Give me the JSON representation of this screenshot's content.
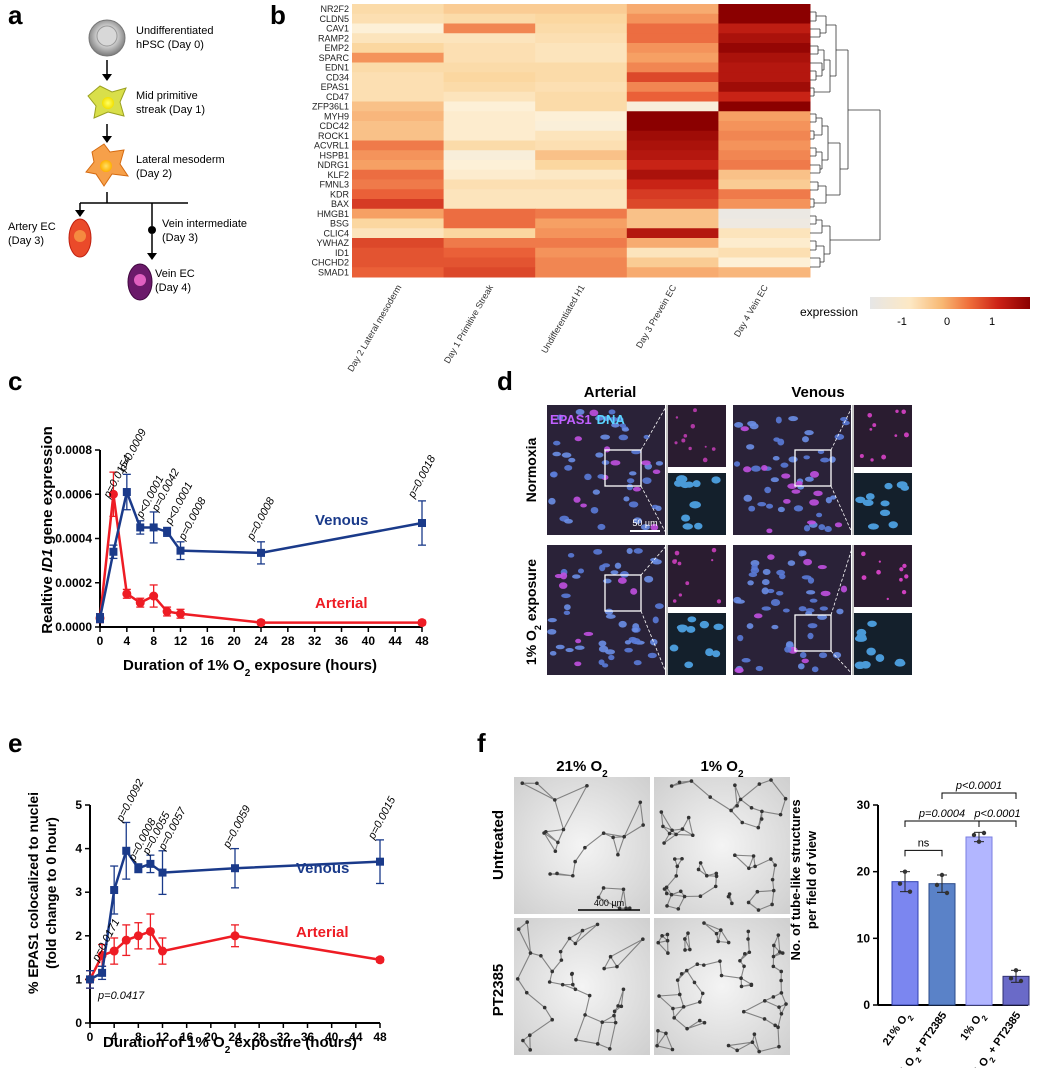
{
  "panels": {
    "a": "a",
    "b": "b",
    "c": "c",
    "d": "d",
    "e": "e",
    "f": "f"
  },
  "colors": {
    "venous": "#1a3a8a",
    "arterial": "#ee1c24",
    "heat_low": "#e6e6e6",
    "heat_mid": "#fbe3b8",
    "heat_high": "#8b0000"
  },
  "panel_a": {
    "stages": [
      {
        "line1": "Undifferentiated",
        "line2": "hPSC (Day 0)"
      },
      {
        "line1": "Mid primitive",
        "line2": "streak (Day 1)"
      },
      {
        "line1": "Lateral mesoderm",
        "line2": "(Day 2)"
      },
      {
        "line1": "Artery EC",
        "line2": "(Day 3)"
      },
      {
        "line1": "Vein intermediate",
        "line2": "(Day 3)"
      },
      {
        "line1": "Vein EC",
        "line2": "(Day 4)"
      }
    ]
  },
  "panel_b": {
    "genes": [
      "NR2F2",
      "CLDN5",
      "CAV1",
      "RAMP2",
      "EMP2",
      "SPARC",
      "EDN1",
      "CD34",
      "EPAS1",
      "CD47",
      "ZFP36L1",
      "MYH9",
      "CDC42",
      "ROCK1",
      "ACVRL1",
      "HSPB1",
      "NDRG1",
      "KLF2",
      "FMNL3",
      "KDR",
      "BAX",
      "HMGB1",
      "BSG",
      "CLIC4",
      "YWHAZ",
      "ID1",
      "CHCHD2",
      "SMAD1"
    ],
    "columns": [
      "Day 2 Lateral mesoderm",
      "Day 1 Primitive Streak",
      "Undifferentiated H1",
      "Day 3 Prevein EC",
      "Day 4 Vein EC"
    ],
    "values": [
      [
        -0.4,
        -0.2,
        -0.2,
        0.1,
        1.8
      ],
      [
        -0.5,
        -0.4,
        -0.3,
        0.3,
        1.8
      ],
      [
        -0.9,
        0.4,
        -0.4,
        0.6,
        1.3
      ],
      [
        -0.6,
        -0.6,
        -0.5,
        0.6,
        1.5
      ],
      [
        -0.3,
        -0.5,
        -0.6,
        0.3,
        1.7
      ],
      [
        0.3,
        -0.5,
        -0.6,
        0.2,
        1.5
      ],
      [
        -0.4,
        -0.4,
        -0.4,
        0.4,
        1.4
      ],
      [
        -0.5,
        -0.3,
        -0.4,
        0.9,
        1.4
      ],
      [
        -0.5,
        -0.4,
        -0.5,
        0.4,
        1.6
      ],
      [
        -0.5,
        -0.6,
        -0.4,
        0.7,
        1.2
      ],
      [
        -0.1,
        -0.9,
        -0.4,
        -1.1,
        1.8
      ],
      [
        0.0,
        -0.8,
        -0.9,
        1.8,
        0.2
      ],
      [
        -0.1,
        -0.8,
        -1.0,
        1.8,
        0.3
      ],
      [
        -0.1,
        -0.8,
        -0.6,
        1.6,
        0.4
      ],
      [
        0.5,
        -0.4,
        -0.5,
        1.5,
        0.3
      ],
      [
        0.3,
        -1.1,
        -0.1,
        1.4,
        0.4
      ],
      [
        0.2,
        -0.9,
        -0.3,
        1.2,
        0.5
      ],
      [
        0.6,
        -0.8,
        -0.7,
        1.5,
        -0.1
      ],
      [
        0.5,
        -0.5,
        -0.5,
        1.2,
        -0.2
      ],
      [
        0.7,
        -0.6,
        -0.6,
        1.0,
        0.5
      ],
      [
        1.0,
        -0.6,
        -0.6,
        0.9,
        0.3
      ],
      [
        0.2,
        0.6,
        0.5,
        -0.1,
        -1.6
      ],
      [
        -0.3,
        0.6,
        0.2,
        -0.1,
        -1.5
      ],
      [
        -0.6,
        -0.3,
        0.3,
        1.4,
        -0.6
      ],
      [
        0.9,
        0.5,
        0.5,
        0.1,
        -0.8
      ],
      [
        0.8,
        0.7,
        0.3,
        -0.6,
        -0.5
      ],
      [
        0.8,
        0.8,
        0.4,
        -0.2,
        -0.9
      ],
      [
        0.7,
        0.9,
        0.4,
        0.1,
        0.0
      ]
    ],
    "legend_title": "expression",
    "legend_ticks": [
      "-1",
      "0",
      "1"
    ]
  },
  "panel_c": {
    "ylabel_pre": "Realtive ",
    "ylabel_italic": "ID1",
    "ylabel_post": " gene expression",
    "xlabel_pre": "Duration of 1% O",
    "xlabel_sub": "2",
    "xlabel_post": " exposure (hours)",
    "xticks": [
      "0",
      "4",
      "8",
      "12",
      "16",
      "20",
      "24",
      "28",
      "32",
      "36",
      "40",
      "44",
      "48"
    ],
    "yticks": [
      "0.0000",
      "0.0002",
      "0.0004",
      "0.0006",
      "0.0008"
    ],
    "venous_label": "Venous",
    "arterial_label": "Arterial",
    "pvalues": [
      "p=0.0154",
      "p=0.0009",
      "p<0.0001",
      "p=0.0042",
      "p<0.0001",
      "p=0.0008",
      "p=0.0008",
      "p=0.0018"
    ]
  },
  "panel_d": {
    "col1": "Arterial",
    "col2": "Venous",
    "row1": "Normoxia",
    "row2_pre": "1% O",
    "row2_sub": "2",
    "row2_post": " exposure",
    "stain1": "EPAS1",
    "stain2": "DNA",
    "scale": "50 µm"
  },
  "panel_e": {
    "ylabel1": "% EPAS1 colocalized to nuclei",
    "ylabel2": "(fold change to 0 hour)",
    "xlabel_pre": "Duration of 1% O",
    "xlabel_sub": "2",
    "xlabel_post": " exposure (hours)",
    "xticks": [
      "0",
      "4",
      "8",
      "12",
      "16",
      "20",
      "24",
      "28",
      "32",
      "36",
      "40",
      "44",
      "48"
    ],
    "yticks": [
      "0",
      "1",
      "2",
      "3",
      "4",
      "5"
    ],
    "venous_label": "Venous",
    "arterial_label": "Arterial",
    "pvalues": [
      "p=0.0171",
      "p=0.0092",
      "p=0.0008",
      "p=0.0055",
      "p=0.0057",
      "p=0.0059",
      "p=0.0015"
    ],
    "pvalue_low": "p=0.0417"
  },
  "panel_f": {
    "col1_pre": "21%  O",
    "col1_sub": "2",
    "col2_pre": "1%  O",
    "col2_sub": "2",
    "row1": "Untreated",
    "row2": "PT2385",
    "scale": "400 µm",
    "ylabel1": "No. of tube-like structures",
    "ylabel2": "per field of view",
    "yticks": [
      "0",
      "10",
      "20",
      "30"
    ],
    "bar_labels": [
      {
        "pre": "21% O",
        "sub": "2",
        "post": ""
      },
      {
        "pre": "21% O",
        "sub": "2",
        "post": " + PT2385"
      },
      {
        "pre": "1% O",
        "sub": "2",
        "post": ""
      },
      {
        "pre": "1% O",
        "sub": "2",
        "post": " + PT2385"
      }
    ],
    "sig1": "ns",
    "sig2": "p=0.0004",
    "sig3": "p<0.0001",
    "sig4": "p<0.0001"
  },
  "chart_data": [
    {
      "type": "heatmap",
      "title": "",
      "x": [
        "Day 2 Lateral mesoderm",
        "Day 1 Primitive Streak",
        "Undifferentiated H1",
        "Day 3 Prevein EC",
        "Day 4 Vein EC"
      ],
      "y": [
        "NR2F2",
        "CLDN5",
        "CAV1",
        "RAMP2",
        "EMP2",
        "SPARC",
        "EDN1",
        "CD34",
        "EPAS1",
        "CD47",
        "ZFP36L1",
        "MYH9",
        "CDC42",
        "ROCK1",
        "ACVRL1",
        "HSPB1",
        "NDRG1",
        "KLF2",
        "FMNL3",
        "KDR",
        "BAX",
        "HMGB1",
        "BSG",
        "CLIC4",
        "YWHAZ",
        "ID1",
        "CHCHD2",
        "SMAD1"
      ],
      "legend": "expression",
      "range": [
        -1.8,
        1.8
      ]
    },
    {
      "type": "line",
      "xlabel": "Duration of 1% O2 exposure (hours)",
      "ylabel": "Realtive ID1 gene expression",
      "xlim": [
        0,
        48
      ],
      "ylim": [
        0,
        0.0008
      ],
      "series": [
        {
          "name": "Venous",
          "x": [
            0,
            2,
            4,
            6,
            8,
            10,
            12,
            24,
            48
          ],
          "y": [
            4e-05,
            0.00034,
            0.00061,
            0.00045,
            0.00045,
            0.00043,
            0.000345,
            0.000335,
            0.00047
          ],
          "err": [
            2e-05,
            3e-05,
            8e-05,
            3e-05,
            7e-05,
            2e-05,
            4e-05,
            5e-05,
            0.0001
          ]
        },
        {
          "name": "Arterial",
          "x": [
            0,
            2,
            4,
            6,
            8,
            10,
            12,
            24,
            48
          ],
          "y": [
            4e-05,
            0.0006,
            0.00015,
            0.00011,
            0.00014,
            7e-05,
            6e-05,
            2e-05,
            2e-05
          ],
          "err": [
            2e-05,
            0.0001,
            2e-05,
            2e-05,
            5e-05,
            2e-05,
            2e-05,
            1e-05,
            1e-05
          ]
        }
      ]
    },
    {
      "type": "line",
      "xlabel": "Duration of 1% O2 exposure (hours)",
      "ylabel": "% EPAS1 colocalized to nuclei (fold change to 0 hour)",
      "xlim": [
        0,
        48
      ],
      "ylim": [
        0,
        5
      ],
      "series": [
        {
          "name": "Venous",
          "x": [
            0,
            2,
            4,
            6,
            8,
            10,
            12,
            24,
            48
          ],
          "y": [
            1.0,
            1.15,
            3.05,
            3.95,
            3.55,
            3.65,
            3.45,
            3.55,
            3.7
          ],
          "err": [
            0.2,
            0.15,
            0.55,
            0.65,
            0.1,
            0.2,
            0.5,
            0.45,
            0.5
          ]
        },
        {
          "name": "Arterial",
          "x": [
            0,
            2,
            4,
            6,
            8,
            10,
            12,
            24,
            48
          ],
          "y": [
            1.0,
            1.55,
            1.65,
            1.9,
            2.0,
            2.1,
            1.65,
            2.0,
            1.45
          ],
          "err": [
            0.2,
            0.25,
            0.3,
            0.35,
            0.3,
            0.4,
            0.3,
            0.25,
            0.05
          ]
        }
      ]
    },
    {
      "type": "bar",
      "categories": [
        "21% O2",
        "21% O2 + PT2385",
        "1% O2",
        "1% O2 + PT2385"
      ],
      "values": [
        18.5,
        18.2,
        25.2,
        4.3
      ],
      "points": [
        [
          18.2,
          20.0,
          17.0
        ],
        [
          18.0,
          19.5,
          16.8
        ],
        [
          25.5,
          24.5,
          25.8
        ],
        [
          4.0,
          5.2,
          3.6
        ]
      ],
      "ylabel": "No. of tube-like structures per field of view",
      "ylim": [
        0,
        30
      ]
    }
  ]
}
